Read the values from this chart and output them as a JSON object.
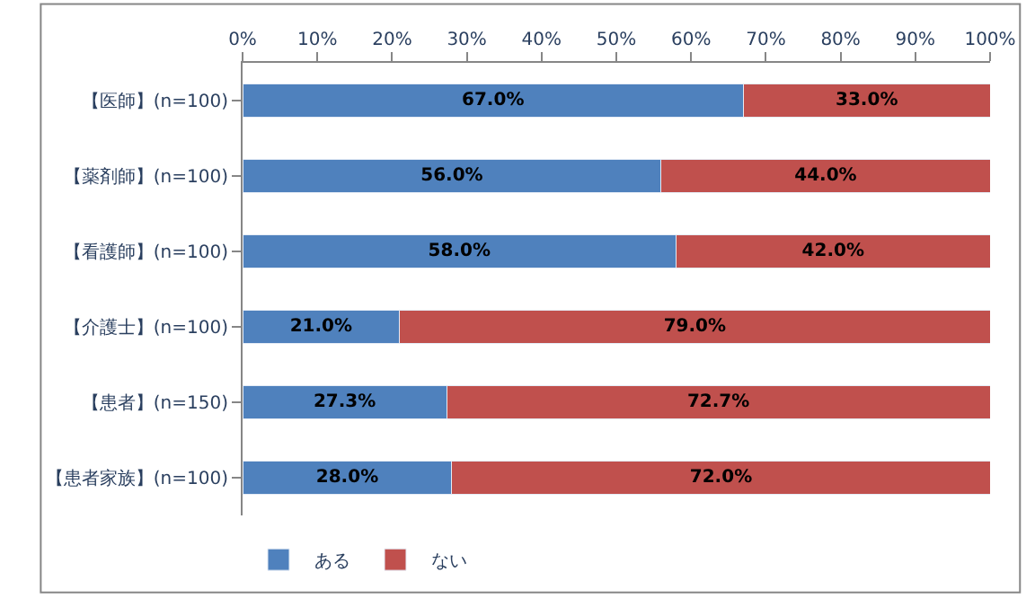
{
  "chart_data": {
    "type": "bar",
    "orientation": "horizontal",
    "stacked": true,
    "categories": [
      "【医師】(n=100)",
      "【薬剤師】(n=100)",
      "【看護師】(n=100)",
      "【介護士】(n=100)",
      "【患者】(n=150)",
      "【患者家族】(n=100)"
    ],
    "series": [
      {
        "name": "ある",
        "color": "#4f81bd",
        "values": [
          67.0,
          56.0,
          58.0,
          21.0,
          27.3,
          28.0
        ],
        "value_labels": [
          "67.0%",
          "56.0%",
          "58.0%",
          "21.0%",
          "27.3%",
          "28.0%"
        ]
      },
      {
        "name": "ない",
        "color": "#c0504d",
        "values": [
          33.0,
          44.0,
          42.0,
          79.0,
          72.7,
          72.0
        ],
        "value_labels": [
          "33.0%",
          "44.0%",
          "42.0%",
          "79.0%",
          "72.7%",
          "72.0%"
        ]
      }
    ],
    "xlim": [
      0,
      100
    ],
    "xticks": [
      {
        "value": 0,
        "label": "0%"
      },
      {
        "value": 10,
        "label": "10%"
      },
      {
        "value": 20,
        "label": "20%"
      },
      {
        "value": 30,
        "label": "30%"
      },
      {
        "value": 40,
        "label": "40%"
      },
      {
        "value": 50,
        "label": "50%"
      },
      {
        "value": 60,
        "label": "60%"
      },
      {
        "value": 70,
        "label": "70%"
      },
      {
        "value": 80,
        "label": "80%"
      },
      {
        "value": 90,
        "label": "90%"
      },
      {
        "value": 100,
        "label": "100%"
      }
    ],
    "grid": false,
    "legend": "bottom left"
  }
}
